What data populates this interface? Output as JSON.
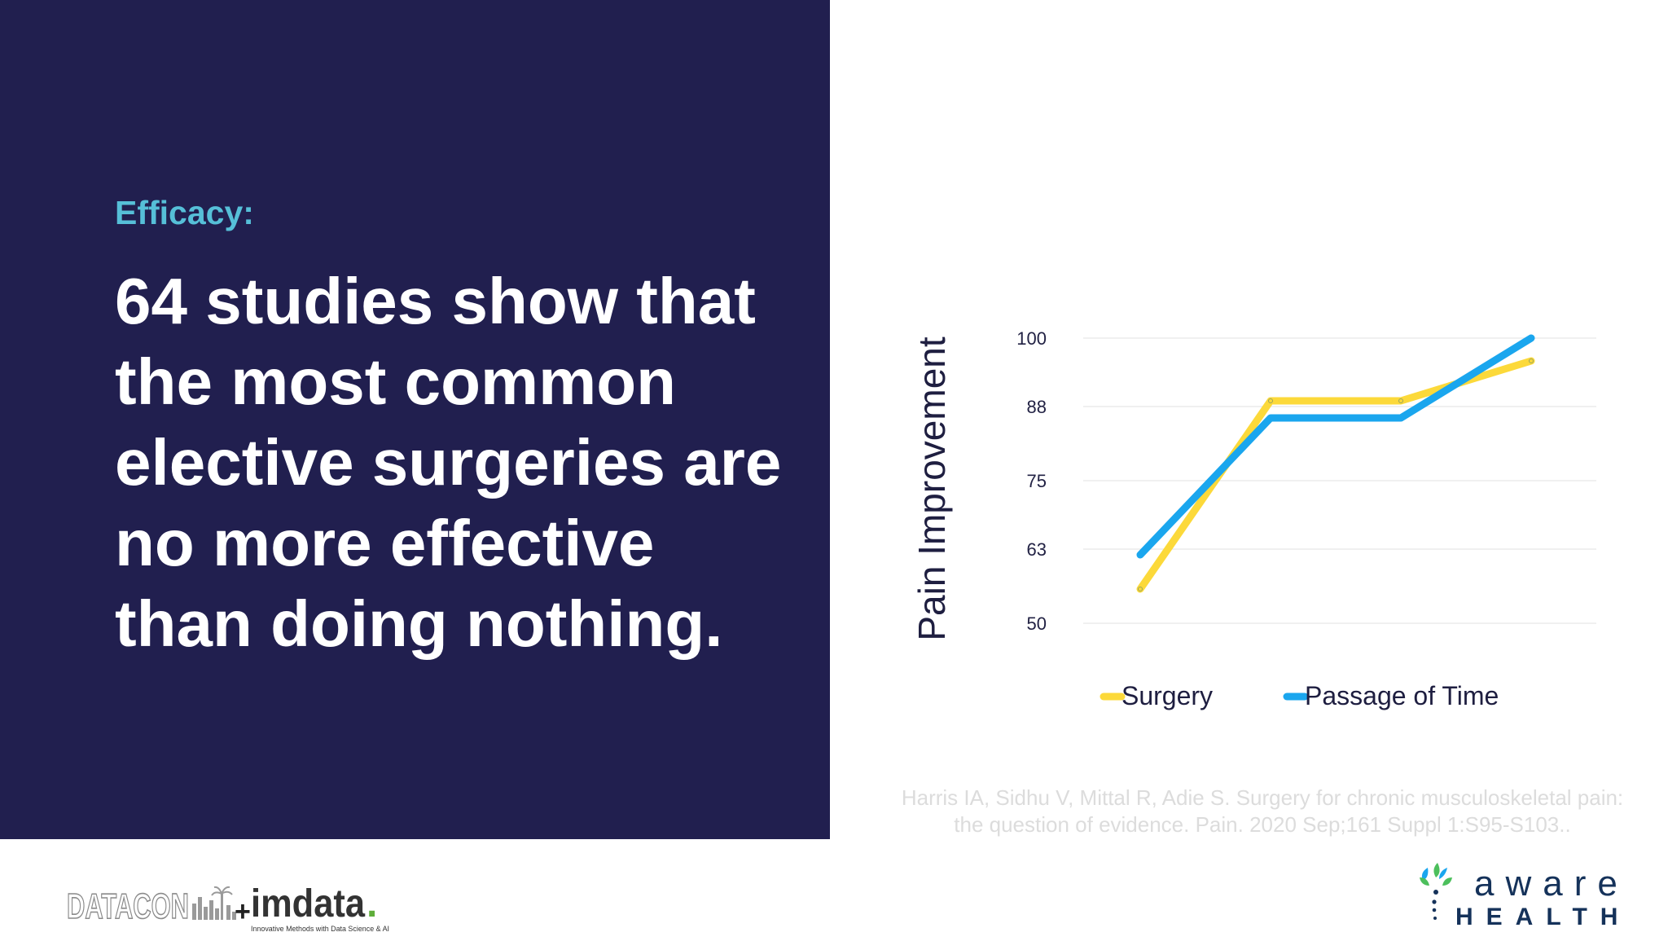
{
  "slide": {
    "eyebrow": "Efficacy:",
    "headline": "64 studies show that the most common elective surgeries are no more effective than doing nothing.",
    "citation": "Harris IA, Sidhu V, Mittal R, Adie S. Surgery for chronic musculoskeletal pain: the question of evidence. Pain. 2020 Sep;161 Suppl 1:S95-S103..",
    "background_color": "#211f4f",
    "accent_color": "#56bfd8"
  },
  "logos": {
    "left": {
      "word1": "DATACON",
      "plus": "+",
      "word2": "imdata",
      "dot": ".",
      "tagline": "Innovative Methods with Data Science & AI"
    },
    "right": {
      "line1": "aware",
      "line2": "HEALTH"
    }
  },
  "chart_data": {
    "type": "line",
    "title": "",
    "ylabel": "Pain Improvement",
    "xlabel": "",
    "y_ticks": [
      "100",
      "88",
      "75",
      "63",
      "50"
    ],
    "y_tick_values": [
      100,
      88,
      75,
      63,
      50
    ],
    "ylim": [
      50,
      100
    ],
    "x": [
      1,
      2,
      3,
      4
    ],
    "series": [
      {
        "name": "Surgery",
        "color": "#fcd93a",
        "values": [
          56,
          89,
          89,
          96
        ]
      },
      {
        "name": "Passage of Time",
        "color": "#1aa6ee",
        "values": [
          62,
          86,
          86,
          100
        ]
      }
    ],
    "grid": true,
    "legend_position": "bottom"
  }
}
